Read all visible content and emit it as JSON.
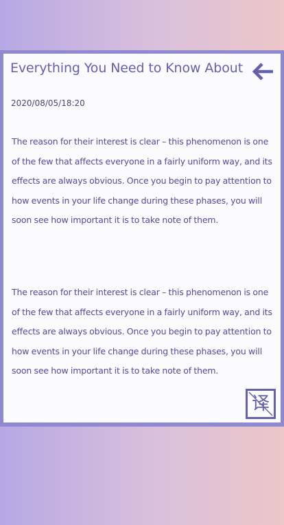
{
  "article": {
    "title": "Everything You Need to Know About",
    "date": "2020/08/05/18:20",
    "paragraphs": [
      "The reason for their interest is clear – this phenomenon is one of the few that affects everyone in a fairly uniform way, and its effects are always obvious. Once you begin to pay attention to how events in your life change during these phases, you will soon see how important it is to take note of them.",
      "The reason for their interest is clear – this phenomenon is one of the few that affects everyone in a fairly uniform way, and its effects are always obvious. Once you begin to pay attention to how events in your life change during these phases, you will soon see how important it is to take note of them."
    ]
  },
  "controls": {
    "back_icon": "arrow-left-icon",
    "translate_label": "译",
    "translate_icon": "translate-icon"
  },
  "colors": {
    "accent": "#6461a8",
    "frame": "#8f89cf",
    "text": "#524c97",
    "card_bg": "#fbfafc"
  }
}
